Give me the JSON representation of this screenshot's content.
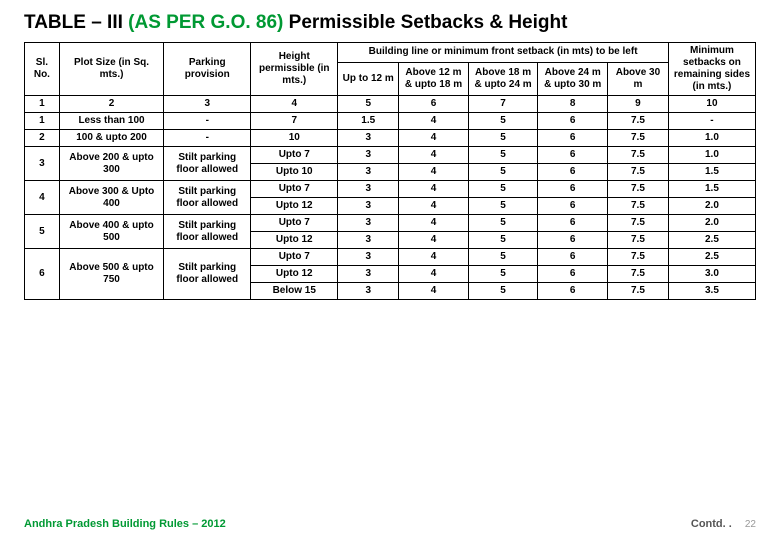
{
  "title": {
    "part1": "TABLE – III ",
    "part2": "(AS PER G.O. 86)",
    "part3": " Permissible Setbacks & Height"
  },
  "headers": {
    "sl": "Sl. No.",
    "plot": "Plot Size (in Sq. mts.)",
    "parking": "Parking provision",
    "height": "Height permissible (in mts.)",
    "group": "Building line or minimum front setback (in mts) to be left",
    "upto12": "Up to 12 m",
    "above12": "Above 12 m & upto 18 m",
    "above18": "Above 18 m & upto 24 m",
    "above24": "Above 24 m & upto 30 m",
    "above30": "Above 30 m",
    "min": "Minimum setbacks on remaining sides (in mts.)"
  },
  "rows": [
    {
      "sl": "1",
      "plot": "2",
      "park": "3",
      "h": "4",
      "c1": "5",
      "c2": "6",
      "c3": "7",
      "c4": "8",
      "c5": "9",
      "min": "10"
    },
    {
      "sl": "1",
      "plot": "Less than 100",
      "park": "-",
      "h": "7",
      "c1": "1.5",
      "c2": "4",
      "c3": "5",
      "c4": "6",
      "c5": "7.5",
      "min": "-"
    },
    {
      "sl": "2",
      "plot": "100 & upto 200",
      "park": "-",
      "h": "10",
      "c1": "3",
      "c2": "4",
      "c3": "5",
      "c4": "6",
      "c5": "7.5",
      "min": "1.0"
    }
  ],
  "multi": [
    {
      "sl": "3",
      "plot": "Above 200 & upto 300",
      "park": "Stilt parking floor allowed",
      "sub": [
        {
          "h": "Upto 7",
          "c1": "3",
          "c2": "4",
          "c3": "5",
          "c4": "6",
          "c5": "7.5",
          "min": "1.0"
        },
        {
          "h": "Upto 10",
          "c1": "3",
          "c2": "4",
          "c3": "5",
          "c4": "6",
          "c5": "7.5",
          "min": "1.5"
        }
      ]
    },
    {
      "sl": "4",
      "plot": "Above 300 & Upto 400",
      "park": "Stilt parking floor allowed",
      "sub": [
        {
          "h": "Upto 7",
          "c1": "3",
          "c2": "4",
          "c3": "5",
          "c4": "6",
          "c5": "7.5",
          "min": "1.5"
        },
        {
          "h": "Upto 12",
          "c1": "3",
          "c2": "4",
          "c3": "5",
          "c4": "6",
          "c5": "7.5",
          "min": "2.0"
        }
      ]
    },
    {
      "sl": "5",
      "plot": "Above 400 & upto 500",
      "park": "Stilt parking floor allowed",
      "sub": [
        {
          "h": "Upto 7",
          "c1": "3",
          "c2": "4",
          "c3": "5",
          "c4": "6",
          "c5": "7.5",
          "min": "2.0"
        },
        {
          "h": "Upto 12",
          "c1": "3",
          "c2": "4",
          "c3": "5",
          "c4": "6",
          "c5": "7.5",
          "min": "2.5"
        }
      ]
    },
    {
      "sl": "6",
      "plot": "Above 500 & upto 750",
      "park": "Stilt parking floor allowed",
      "sub": [
        {
          "h": "Upto 7",
          "c1": "3",
          "c2": "4",
          "c3": "5",
          "c4": "6",
          "c5": "7.5",
          "min": "2.5"
        },
        {
          "h": "Upto 12",
          "c1": "3",
          "c2": "4",
          "c3": "5",
          "c4": "6",
          "c5": "7.5",
          "min": "3.0"
        },
        {
          "h": "Below 15",
          "c1": "3",
          "c2": "4",
          "c3": "5",
          "c4": "6",
          "c5": "7.5",
          "min": "3.5"
        }
      ]
    }
  ],
  "footer": {
    "left": "Andhra Pradesh Building Rules – 2012",
    "right": "Contd. .",
    "page": "22"
  }
}
